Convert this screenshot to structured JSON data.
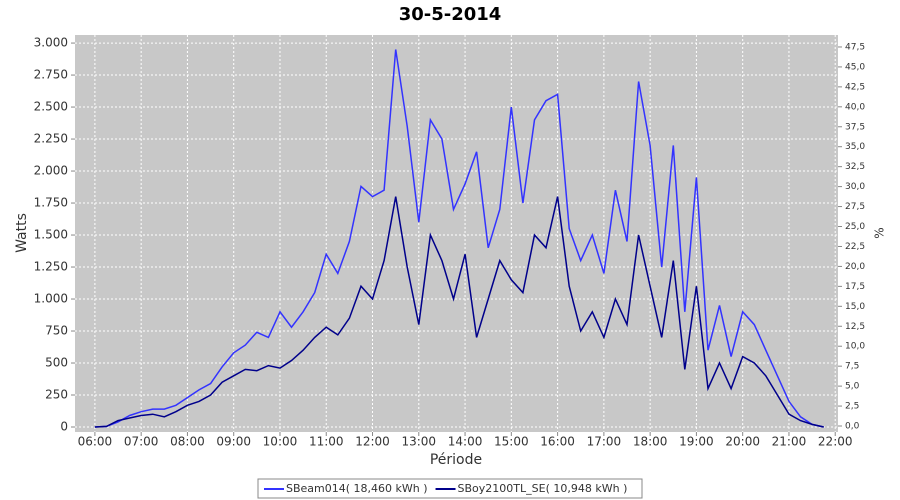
{
  "chart_data": {
    "type": "line",
    "title": "30-5-2014",
    "x_label": "Période",
    "y_label": "Watts",
    "y2_label": "%",
    "x": [
      6,
      6.25,
      6.5,
      6.75,
      7,
      7.25,
      7.5,
      7.75,
      8,
      8.25,
      8.5,
      8.75,
      9,
      9.25,
      9.5,
      9.75,
      10,
      10.25,
      10.5,
      10.75,
      11,
      11.25,
      11.5,
      11.75,
      12,
      12.25,
      12.5,
      12.75,
      13,
      13.25,
      13.5,
      13.75,
      14,
      14.25,
      14.5,
      14.75,
      15,
      15.25,
      15.5,
      15.75,
      16,
      16.25,
      16.5,
      16.75,
      17,
      17.25,
      17.5,
      17.75,
      18,
      18.25,
      18.5,
      18.75,
      19,
      19.25,
      19.5,
      19.75,
      20,
      20.25,
      20.5,
      20.75,
      21,
      21.25,
      21.5,
      21.75
    ],
    "series": [
      {
        "name": "SBeam014( 18,460 kWh )",
        "color": "#3333ff",
        "values": [
          0,
          5,
          40,
          90,
          120,
          140,
          140,
          170,
          230,
          290,
          340,
          470,
          580,
          640,
          740,
          700,
          900,
          780,
          900,
          1050,
          1350,
          1200,
          1450,
          1880,
          1800,
          1850,
          2950,
          2350,
          1600,
          2400,
          2250,
          1700,
          1900,
          2150,
          1400,
          1700,
          2500,
          1750,
          2400,
          2550,
          2600,
          1550,
          1300,
          1500,
          1200,
          1850,
          1450,
          2700,
          2200,
          1250,
          2200,
          900,
          1950,
          600,
          950,
          550,
          900,
          800,
          600,
          400,
          200,
          80,
          20,
          0
        ]
      },
      {
        "name": "SBoy2100TL_SE( 10,948 kWh )",
        "color": "#00008b",
        "values": [
          0,
          5,
          50,
          70,
          90,
          100,
          80,
          120,
          170,
          200,
          250,
          350,
          400,
          450,
          440,
          480,
          460,
          520,
          600,
          700,
          780,
          720,
          850,
          1100,
          1000,
          1300,
          1800,
          1250,
          800,
          1500,
          1300,
          1000,
          1350,
          700,
          1000,
          1300,
          1150,
          1050,
          1500,
          1400,
          1800,
          1100,
          750,
          900,
          700,
          1000,
          800,
          1500,
          1100,
          700,
          1300,
          450,
          1100,
          300,
          500,
          300,
          550,
          500,
          400,
          250,
          100,
          50,
          20,
          0
        ]
      }
    ],
    "xlim": [
      5.57,
      22.06
    ],
    "xticks": [
      {
        "value": 6,
        "label": "06:00"
      },
      {
        "value": 7,
        "label": "07:00"
      },
      {
        "value": 8,
        "label": "08:00"
      },
      {
        "value": 9,
        "label": "09:00"
      },
      {
        "value": 10,
        "label": "10:00"
      },
      {
        "value": 11,
        "label": "11:00"
      },
      {
        "value": 12,
        "label": "12:00"
      },
      {
        "value": 13,
        "label": "13:00"
      },
      {
        "value": 14,
        "label": "14:00"
      },
      {
        "value": 15,
        "label": "15:00"
      },
      {
        "value": 16,
        "label": "16:00"
      },
      {
        "value": 17,
        "label": "17:00"
      },
      {
        "value": 18,
        "label": "18:00"
      },
      {
        "value": 19,
        "label": "19:00"
      },
      {
        "value": 20,
        "label": "20:00"
      },
      {
        "value": 21,
        "label": "21:00"
      },
      {
        "value": 22,
        "label": "22:00"
      }
    ],
    "ylim": [
      -39,
      3063
    ],
    "yticks": [
      0,
      250,
      500,
      750,
      {
        "value": 1000,
        "label": "1.000"
      },
      {
        "value": 1250,
        "label": "1.250"
      },
      {
        "value": 1500,
        "label": "1.500"
      },
      {
        "value": 1750,
        "label": "1.750"
      },
      {
        "value": 2000,
        "label": "2.000"
      },
      {
        "value": 2250,
        "label": "2.250"
      },
      {
        "value": 2500,
        "label": "2.500"
      },
      {
        "value": 2750,
        "label": "2.750"
      },
      {
        "value": 3000,
        "label": "3.000"
      }
    ],
    "y2lim": [
      -0.75,
      49
    ],
    "y2ticks": [
      {
        "value": 0,
        "label": "0,0"
      },
      {
        "value": 2.5,
        "label": "2,5"
      },
      {
        "value": 5,
        "label": "5,0"
      },
      {
        "value": 7.5,
        "label": "7,5"
      },
      {
        "value": 10,
        "label": "10,0"
      },
      {
        "value": 12.5,
        "label": "12,5"
      },
      {
        "value": 15,
        "label": "15,0"
      },
      {
        "value": 17.5,
        "label": "17,5"
      },
      {
        "value": 20,
        "label": "20,0"
      },
      {
        "value": 22.5,
        "label": "22,5"
      },
      {
        "value": 25,
        "label": "25,0"
      },
      {
        "value": 27.5,
        "label": "27,5"
      },
      {
        "value": 30,
        "label": "30,0"
      },
      {
        "value": 32.5,
        "label": "32,5"
      },
      {
        "value": 35,
        "label": "35,0"
      },
      {
        "value": 37.5,
        "label": "37,5"
      },
      {
        "value": 40,
        "label": "40,0"
      },
      {
        "value": 42.5,
        "label": "42,5"
      },
      {
        "value": 45,
        "label": "45,0"
      },
      {
        "value": 47.5,
        "label": "47,5"
      }
    ],
    "grid": true,
    "legend": "bottom"
  }
}
